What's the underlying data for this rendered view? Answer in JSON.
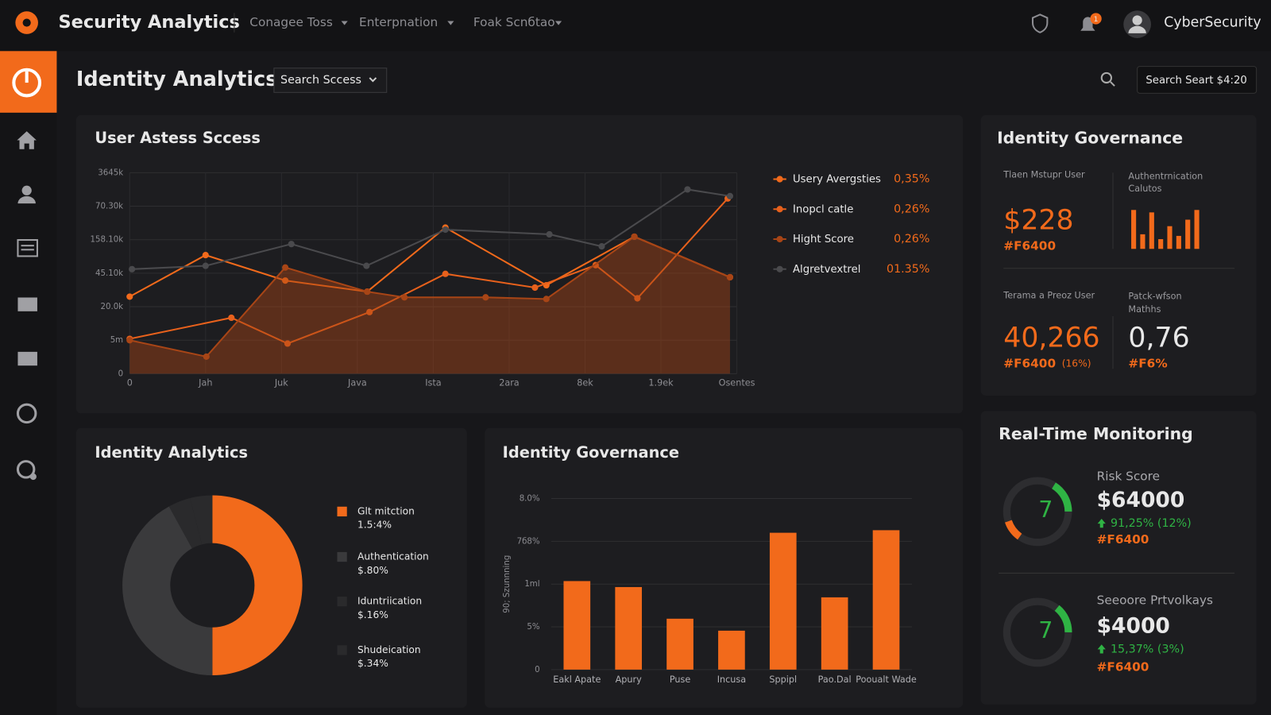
{
  "header": {
    "brand": "Security Analytics",
    "nav": [
      "Conagee Toss",
      "Enterpnation",
      "Foak Scnбtao"
    ],
    "badge": "1",
    "user": "CyberSecurity"
  },
  "toolbar": {
    "title": "Identity Analytics",
    "dropdown": "Search Sccess",
    "search_button": "Search Seart $4:20"
  },
  "chart_data": [
    {
      "type": "line",
      "title": "User Astess Sccess",
      "xlim": [
        0,
        8
      ],
      "ylim": [
        0,
        6
      ],
      "xticks": [
        0,
        {
          "value": 1,
          "label": "Jah"
        },
        {
          "value": 2,
          "label": "Juk"
        },
        {
          "value": 3,
          "label": "Java"
        },
        {
          "value": 4,
          "label": "Ista"
        },
        {
          "value": 5,
          "label": "2ara"
        },
        {
          "value": 6,
          "label": "8ek"
        },
        {
          "value": 7,
          "label": "1.9ek"
        },
        {
          "value": 8,
          "label": "Osentes"
        }
      ],
      "yticks": [
        0,
        {
          "value": 1,
          "label": "5m"
        },
        {
          "value": 2,
          "label": "20.0k"
        },
        {
          "value": 3,
          "label": "45.10k"
        },
        {
          "value": 4,
          "label": "158.10k"
        },
        {
          "value": 5,
          "label": "70.30k"
        },
        {
          "value": 6,
          "label": "3645k"
        }
      ],
      "grid": true,
      "series": [
        {
          "name": "Usery Avergsties",
          "legend_value": "0,35%",
          "color": "#f26a1b",
          "fill": false,
          "x": [
            0,
            1,
            2.05,
            3.13,
            4.16,
            5.49,
            6.65,
            7.91
          ],
          "values": [
            2.3,
            3.54,
            2.78,
            2.45,
            4.36,
            2.64,
            4.09,
            2.88
          ]
        },
        {
          "name": "Inopcl catle",
          "legend_value": "0,26%",
          "color": "#e8611c",
          "fill": false,
          "x": [
            0,
            1.34,
            2.08,
            3.16,
            4.16,
            5.34,
            6.14,
            6.69,
            7.88
          ],
          "values": [
            1.04,
            1.67,
            0.9,
            1.84,
            2.98,
            2.57,
            3.24,
            2.25,
            5.23
          ]
        },
        {
          "name": "Hight Score",
          "legend_value": "0,26%",
          "color": "#a84516",
          "fill": true,
          "x": [
            0,
            1.01,
            2.05,
            3.13,
            3.62,
            4.69,
            5.49,
            6.65,
            7.91
          ],
          "values": [
            1.0,
            0.51,
            3.17,
            2.45,
            2.28,
            2.28,
            2.23,
            4.09,
            2.88
          ]
        },
        {
          "name": "Algretvextrel",
          "legend_value": "01.35%",
          "color": "#4a4a4d",
          "fill": false,
          "x": [
            0.03,
            1,
            2.13,
            3.12,
            4.16,
            5.53,
            6.22,
            7.35,
            7.91
          ],
          "values": [
            3.12,
            3.22,
            3.87,
            3.22,
            4.3,
            4.16,
            3.8,
            5.5,
            5.3
          ]
        }
      ]
    },
    {
      "type": "pie",
      "title": "Identity Analytics",
      "categories": [
        "Glt mitction",
        "Authentication",
        "Iduntriication",
        "Shudeication"
      ],
      "legend_details": [
        "1.5:4%",
        "$.80%",
        "$.16%",
        "$.34%"
      ],
      "values": [
        50,
        42,
        4,
        4
      ],
      "colors": [
        "#f26a1b",
        "#3a3a3c",
        "#2a2a2c",
        "#2a2a2c"
      ]
    },
    {
      "type": "bar",
      "title": "Identity Governance",
      "ylabel": "90; Szunnning",
      "categories": [
        "Eakl Apate",
        "Apury",
        "Puse",
        "Incusa",
        "Sppipl",
        "Pao.Dal",
        "Pooualt Wade"
      ],
      "values": [
        2.07,
        1.93,
        1.19,
        0.91,
        3.2,
        1.69,
        3.26
      ],
      "color": "#f26a1b",
      "ylim": [
        0,
        4
      ],
      "yticks": [
        0,
        {
          "value": 1,
          "label": "5%"
        },
        {
          "value": 2,
          "label": "1ml"
        },
        {
          "value": 3,
          "label": "7б8%"
        },
        {
          "value": 4,
          "label": "8.0%"
        }
      ],
      "grid": true
    },
    {
      "type": "bar",
      "categories": [
        null,
        null,
        null,
        null,
        null,
        null,
        null,
        null
      ],
      "values": [
        48,
        18,
        45,
        12,
        28,
        16,
        36,
        48
      ],
      "color": "#f26a1b",
      "ylim": [
        0,
        52
      ]
    }
  ],
  "governance": {
    "title": "Identity Governance",
    "metrics": [
      {
        "label": [
          "Tlaen Mstupr User"
        ],
        "value": "$228",
        "sub": "#F6400"
      },
      {
        "label": [
          "Authentrnication",
          "Calutos"
        ]
      },
      {
        "label": [
          "Terama a Preoz User"
        ],
        "value": "40,266",
        "sub": "#F6400",
        "note": "(16%)"
      },
      {
        "label": [
          "Patck-wfson",
          "Mathhs"
        ],
        "value": "0,76",
        "sub": "#F6%"
      }
    ]
  },
  "monitoring": {
    "title": "Real-Time Monitoring",
    "items": [
      {
        "gauge_text": "7",
        "label": "Risk Score",
        "value": "$64000",
        "change": "91,25% (12%)",
        "sub": "#F6400"
      },
      {
        "gauge_text": "7",
        "label": "Seeoore Prtvolkays",
        "value": "$4000",
        "change": "15,37% (3%)",
        "sub": "#F6400"
      }
    ]
  }
}
